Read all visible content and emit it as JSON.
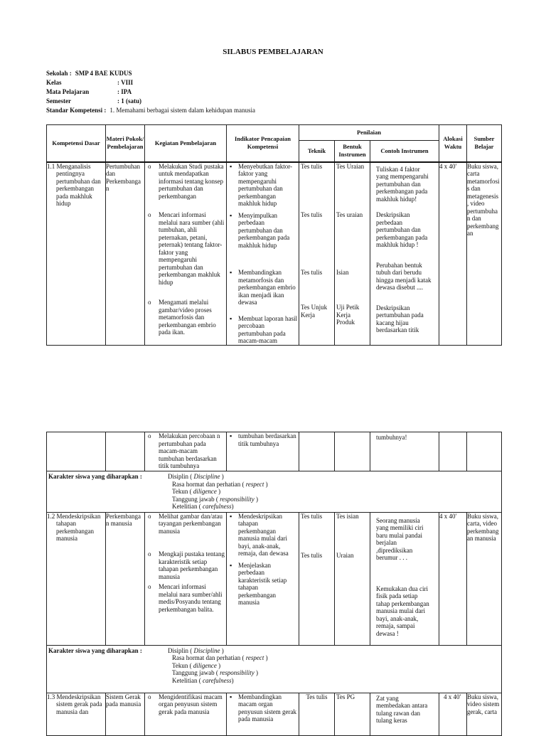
{
  "title": "SILABUS PEMBELAJARAN",
  "meta": [
    {
      "label": "Sekolah :",
      "value": "SMP 4 BAE KUDUS"
    },
    {
      "label": "Kelas",
      "value": ":   VIII"
    },
    {
      "label": "Mata Pelajaran",
      "value": ":   IPA"
    },
    {
      "label": "Semester",
      "value": ":   1 (satu)"
    },
    {
      "label": "Standar Kompetensi :",
      "value": "1. Memahami berbagai sistem dalam kehidupan manusia"
    }
  ],
  "headers": {
    "kd": "Kompetensi Dasar",
    "materi": "Materi Pokok/ Pembelajaran",
    "kegiatan": "Kegiatan Pembelajaran",
    "indikator": "Indikator Pencapaian Kompetensi",
    "penilaian": "Penilaian",
    "teknik": "Teknik",
    "bentuk": "Bentuk Instrumen",
    "contoh": "Contoh Instrumen",
    "alokasi": "Alokasi Waktu",
    "sumber": "Sumber Belajar"
  },
  "rows": [
    {
      "kd": "1.1 Menganalisis pentingnya pertumbuhan dan perkembangan pada makhluk hidup",
      "materi": "Pertumbuhan dan Perkembangan",
      "kegiatan": [
        "Melakukan Studi pustaka untuk mendapatkan informasi tentang konsep pertumbuhan dan perkembangan",
        "Mencari informasi melalui nara sumber (ahli tumbuhan, ahli peternakan, petani, peternak) tentang faktor-faktor yang mempengaruhi pertumbuhan dan perkembangan makhluk hidup",
        "Mengamati melalui gambar/video proses metamorfosis dan perkembangan embrio pada ikan."
      ],
      "indikator": [
        "Menyebutkan faktor-faktor yang mempengaruhi pertumbuhan dan perkembangan makhluk hidup",
        "Menyimpulkan perbedaan pertumbuhan dan perkembangan pada makhluk hidup",
        "Membandingkan metamorfosis dan perkembangan embrio ikan menjadi ikan dewasa",
        "Membuat laporan hasil percobaan pertumbuhan pada macam-macam"
      ],
      "teknik": [
        "Tes tulis",
        "Tes tulis",
        "Tes tulis",
        "Tes Unjuk Kerja"
      ],
      "bentuk": [
        "Tes Uraian",
        "Tes uraian",
        "Isian",
        "Uji Petik Kerja Produk"
      ],
      "contoh": [
        "Tuliskan 4 faktor yang mempengaruhi pertumbuhan dan perkembangan pada makhluk hidup!",
        "Deskripsikan perbedaan pertumbuhan dan perkembangan pada makhluk hidup !",
        "Perubahan bentuk tubuh dari berudu hingga menjadi katak dewasa disebut ....",
        "Deskripsikan pertumbuhan pada kacang hijau berdasarkan titik"
      ],
      "alokasi": "4 x 40'",
      "sumber": "Buku siswa, carta metamorfosis dan metagenesis , video pertumbuhan dan perkembangan"
    },
    {
      "kegiatan": [
        "Melakukan percobaan n pertumbuhan pada macam-macam tumbuhan berdasarkan titik tumbuhnya"
      ],
      "indikator": [
        "tumbuhan berdasarkan titik tumbuhnya"
      ],
      "contoh": [
        "tumbuhnya!"
      ]
    },
    {
      "kd": "1.2 Mendeskripsikan tahapan perkembangan manusia",
      "materi": "Perkembangan manusia",
      "kegiatan": [
        "Melihat gambar dan/atau tayangan perkembangan manusia",
        "Mengkaji pustaka tentang karakteristik setiap tahapan perkembangan manusia",
        "Mencari informasi melalui nara sumber/ahli medis/Posyandu tentang perkembangan balita."
      ],
      "indikator": [
        "Mendeskripsikan tahapan perkembangan manusia mulai dari bayi, anak-anak, remaja, dan dewasa",
        "Menjelaskan perbedaan karakteristik setiap tahapan perkembangan manusia"
      ],
      "teknik": [
        "Tes tulis",
        "Tes tulis"
      ],
      "bentuk": [
        "Tes isian",
        "Uraian"
      ],
      "contoh": [
        "Seorang manusia yang memiliki ciri baru mulai pandai berjalan ,diprediksikan berumur . . .",
        "Kemukakan dua ciri fisik pada setiap tahap perkembangan manusia mulai dari bayi, anak-anak, remaja, sampai dewasa !"
      ],
      "alokasi": "4 x 40'",
      "sumber": "Buku siswa, carta, video perkembangan manusia"
    },
    {
      "kd": "1.3 Mendeskripsikan sistem gerak pada manusia dan",
      "materi": "Sistem Gerak pada manusia",
      "kegiatan": [
        "Mengidentifikasi macam organ penyusun sistem gerak pada manusia"
      ],
      "indikator": [
        "Membandingkan macam organ penyusun sistem gerak pada manusia"
      ],
      "teknik": [
        "Tes tulis"
      ],
      "bentuk": [
        "Tes PG"
      ],
      "contoh": [
        "Zat yang membedakan antara tulang rawan dan tulang keras"
      ],
      "alokasi": "4 x 40'",
      "sumber": "Buku siswa, video sistem gerak, carta"
    }
  ],
  "karakter": {
    "label": "Karakter siswa yang diharapkan :",
    "items": [
      {
        "text": "Disiplin ( ",
        "en": "Discipline",
        "close": " )"
      },
      {
        "text": "Rasa hormat dan perhatian ( ",
        "en": "respect",
        "close": " )"
      },
      {
        "text": "Tekun ( ",
        "en": "diligence",
        "close": " )"
      },
      {
        "text": "Tanggung jawab ( ",
        "en": "responsibility",
        "close": " )"
      },
      {
        "text": "Ketelitian ( ",
        "en": "carefulness",
        "close": ")"
      }
    ]
  }
}
